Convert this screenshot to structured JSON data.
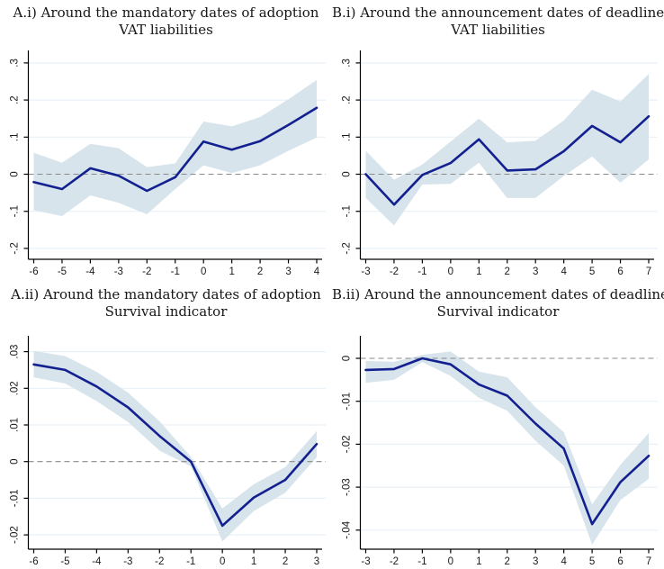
{
  "figure": {
    "background": "#ffffff",
    "description": "Four event-study panels with point estimates and confidence bands"
  },
  "colors": {
    "line": "#132090",
    "band": "#d7e4ec",
    "grid": "#e8f1f7",
    "zero_line": "#8a8a8a",
    "axis": "#000000",
    "tick_label": "#1a1a1a"
  },
  "chart_data": [
    {
      "id": "A_i",
      "type": "line",
      "title_line1": "A.i) Around the mandatory dates of adoption",
      "title_line2": "VAT liabilities",
      "x": [
        -6,
        -5,
        -4,
        -3,
        -2,
        -1,
        0,
        1,
        2,
        3,
        4
      ],
      "xtick_labels": [
        "-6",
        "-5",
        "-4",
        "-3",
        "-2",
        "-1",
        "0",
        "1",
        "2",
        "3",
        "4"
      ],
      "series": [
        {
          "name": "estimate",
          "values": [
            -0.021,
            -0.04,
            0.016,
            -0.004,
            -0.045,
            -0.008,
            0.088,
            0.066,
            0.089,
            0.133,
            0.179
          ]
        }
      ],
      "band": {
        "lower": [
          -0.097,
          -0.113,
          -0.057,
          -0.077,
          -0.108,
          -0.04,
          0.024,
          0.003,
          0.024,
          0.063,
          0.099
        ],
        "upper": [
          0.058,
          0.031,
          0.082,
          0.07,
          0.019,
          0.029,
          0.142,
          0.129,
          0.154,
          0.202,
          0.254
        ]
      },
      "yticks": [
        -0.2,
        -0.1,
        0,
        0.1,
        0.2,
        0.3
      ],
      "ytick_labels": [
        "-.2",
        "-.1",
        "0",
        ".1",
        ".2",
        ".3"
      ],
      "ylim": [
        -0.235,
        0.318
      ],
      "zero_line": true,
      "grid": true,
      "legend": "none"
    },
    {
      "id": "B_i",
      "type": "line",
      "title_line1": "B.i) Around the announcement dates of deadlines",
      "title_line2": "VAT liabilities",
      "x": [
        -3,
        -2,
        -1,
        0,
        1,
        2,
        3,
        4,
        5,
        6,
        7
      ],
      "xtick_labels": [
        "-3",
        "-2",
        "-1",
        "0",
        "1",
        "2",
        "3",
        "4",
        "5",
        "6",
        "7"
      ],
      "series": [
        {
          "name": "estimate",
          "values": [
            0.0,
            -0.082,
            -0.002,
            0.03,
            0.094,
            0.01,
            0.013,
            0.062,
            0.13,
            0.086,
            0.156
          ]
        }
      ],
      "band": {
        "lower": [
          -0.064,
          -0.138,
          -0.028,
          -0.026,
          0.031,
          -0.064,
          -0.064,
          -0.005,
          0.048,
          -0.023,
          0.04
        ],
        "upper": [
          0.063,
          -0.015,
          0.026,
          0.088,
          0.15,
          0.086,
          0.09,
          0.145,
          0.228,
          0.196,
          0.27
        ]
      },
      "yticks": [
        -0.2,
        -0.1,
        0,
        0.1,
        0.2,
        0.3
      ],
      "ytick_labels": [
        "-.2",
        "-.1",
        "0",
        ".1",
        ".2",
        ".3"
      ],
      "ylim": [
        -0.235,
        0.318
      ],
      "zero_line": true,
      "grid": true,
      "legend": "none"
    },
    {
      "id": "A_ii",
      "type": "line",
      "title_line1": "A.ii) Around the mandatory dates of adoption",
      "title_line2": "Survival indicator",
      "x": [
        -6,
        -5,
        -4,
        -3,
        -2,
        -1,
        0,
        1,
        2,
        3
      ],
      "xtick_labels": [
        "-6",
        "-5",
        "-4",
        "-3",
        "-2",
        "-1",
        "0",
        "1",
        "2",
        "3"
      ],
      "series": [
        {
          "name": "estimate",
          "values": [
            0.0265,
            0.025,
            0.0205,
            0.0148,
            0.007,
            0.0,
            -0.0175,
            -0.0098,
            -0.005,
            0.0048
          ]
        }
      ],
      "band": {
        "lower": [
          0.023,
          0.0213,
          0.0165,
          0.0108,
          0.003,
          -0.0013,
          -0.0218,
          -0.0135,
          -0.0085,
          0.0012
        ],
        "upper": [
          0.0302,
          0.0288,
          0.0245,
          0.0188,
          0.011,
          0.0013,
          -0.0128,
          -0.0062,
          -0.0015,
          0.0083
        ]
      },
      "yticks": [
        -0.02,
        -0.01,
        0,
        0.01,
        0.02,
        0.03
      ],
      "ytick_labels": [
        "-.02",
        "-.01",
        "0",
        ".01",
        ".02",
        ".03"
      ],
      "ylim": [
        -0.0239,
        0.0326
      ],
      "zero_line": true,
      "grid": true,
      "legend": "none"
    },
    {
      "id": "B_ii",
      "type": "line",
      "title_line1": "B.ii) Around the announcement dates of deadlines",
      "title_line2": "Survival indicator",
      "x": [
        -3,
        -2,
        -1,
        0,
        1,
        2,
        3,
        4,
        5,
        6,
        7
      ],
      "xtick_labels": [
        "-3",
        "-2",
        "-1",
        "0",
        "1",
        "2",
        "3",
        "4",
        "5",
        "6",
        "7"
      ],
      "series": [
        {
          "name": "estimate",
          "values": [
            -0.0027,
            -0.0025,
            0.0,
            -0.0014,
            -0.0061,
            -0.0087,
            -0.0152,
            -0.021,
            -0.0386,
            -0.0288,
            -0.0227
          ]
        }
      ],
      "band": {
        "lower": [
          -0.0057,
          -0.005,
          -0.0009,
          -0.0041,
          -0.0092,
          -0.0122,
          -0.0192,
          -0.025,
          -0.0434,
          -0.033,
          -0.0281
        ],
        "upper": [
          -0.0006,
          -0.0008,
          0.0008,
          0.0016,
          -0.0031,
          -0.0044,
          -0.0114,
          -0.0172,
          -0.034,
          -0.0248,
          -0.0174
        ]
      },
      "yticks": [
        -0.04,
        -0.03,
        -0.02,
        -0.01,
        0
      ],
      "ytick_labels": [
        "-.04",
        "-.03",
        "-.02",
        "-.01",
        "0"
      ],
      "ylim": [
        -0.0444,
        0.0046
      ],
      "zero_line": true,
      "grid": true,
      "legend": "none"
    }
  ]
}
